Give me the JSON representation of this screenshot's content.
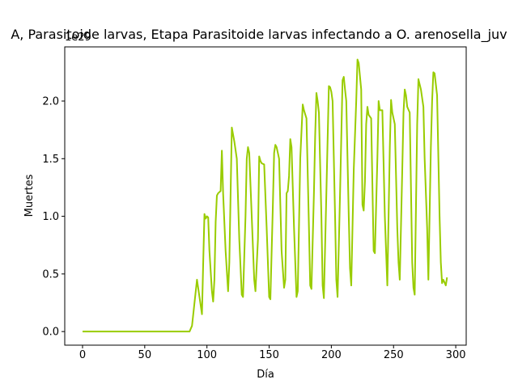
{
  "chart_data": {
    "type": "line",
    "title": "A, Parasitoide larvas, Etapa Parasitoide larvas infectando a O. arenosella_juv",
    "xlabel": "Día",
    "ylabel": "Muertes",
    "offset_text": "1e29",
    "x": [
      0,
      86,
      88,
      90,
      92,
      94,
      96,
      97,
      98,
      99,
      100,
      101,
      102,
      104,
      105,
      106,
      107,
      108,
      109,
      111,
      112,
      113,
      115,
      117,
      118,
      120,
      122,
      124,
      126,
      128,
      129,
      131,
      132,
      133,
      134,
      136,
      138,
      139,
      141,
      142,
      143,
      144,
      146,
      148,
      150,
      151,
      153,
      154,
      155,
      156,
      158,
      160,
      162,
      163,
      164,
      165,
      166,
      167,
      168,
      170,
      172,
      173,
      175,
      177,
      178,
      180,
      182,
      183,
      184,
      186,
      187,
      188,
      189,
      190,
      192,
      193,
      194,
      196,
      198,
      199,
      200,
      201,
      203,
      204,
      205,
      207,
      209,
      210,
      211,
      212,
      214,
      215,
      216,
      218,
      220,
      221,
      222,
      224,
      225,
      226,
      227,
      228,
      229,
      230,
      232,
      234,
      235,
      237,
      238,
      239,
      241,
      243,
      245,
      247,
      248,
      249,
      251,
      253,
      254,
      255,
      257,
      258,
      259,
      260,
      261,
      263,
      265,
      266,
      267,
      269,
      270,
      272,
      274,
      275,
      277,
      278,
      280,
      281,
      282,
      283,
      285,
      287,
      288,
      289,
      290,
      292,
      293
    ],
    "series": [
      {
        "name": "Muertes",
        "color": "#99cc00",
        "values": [
          0,
          0,
          0.05,
          0.25,
          0.45,
          0.3,
          0.15,
          0.6,
          1.02,
          0.98,
          1.0,
          0.99,
          0.7,
          0.35,
          0.26,
          0.45,
          0.95,
          1.18,
          1.2,
          1.22,
          1.57,
          1.2,
          0.7,
          0.35,
          0.6,
          1.77,
          1.65,
          1.5,
          0.8,
          0.32,
          0.3,
          1.0,
          1.5,
          1.6,
          1.55,
          1.0,
          0.45,
          0.35,
          0.8,
          1.52,
          1.48,
          1.46,
          1.45,
          0.9,
          0.3,
          0.28,
          1.1,
          1.55,
          1.62,
          1.6,
          1.5,
          0.7,
          0.38,
          0.45,
          1.2,
          1.22,
          1.35,
          1.67,
          1.6,
          0.9,
          0.3,
          0.35,
          1.5,
          1.97,
          1.92,
          1.85,
          0.9,
          0.4,
          0.37,
          1.2,
          1.7,
          2.07,
          2.0,
          1.9,
          1.0,
          0.4,
          0.29,
          1.2,
          2.13,
          2.12,
          2.08,
          2.0,
          1.0,
          0.45,
          0.3,
          1.2,
          2.18,
          2.21,
          2.1,
          2.0,
          1.0,
          0.55,
          0.4,
          1.4,
          2.0,
          2.36,
          2.33,
          2.1,
          1.1,
          1.05,
          1.3,
          1.8,
          1.95,
          1.88,
          1.85,
          0.7,
          0.68,
          1.5,
          2.0,
          1.92,
          1.92,
          1.0,
          0.4,
          1.6,
          2.01,
          1.9,
          1.8,
          0.9,
          0.6,
          0.45,
          1.4,
          1.9,
          2.1,
          2.05,
          1.95,
          1.9,
          0.6,
          0.38,
          0.32,
          1.8,
          2.19,
          2.1,
          1.95,
          1.5,
          0.9,
          0.45,
          1.6,
          2.0,
          2.25,
          2.24,
          2.05,
          1.0,
          0.6,
          0.42,
          0.45,
          0.4,
          0.47
        ]
      }
    ],
    "xlim": [
      -14.3,
      308.4
    ],
    "ylim": [
      -0.118,
      2.47
    ],
    "xticks": [
      0,
      50,
      100,
      150,
      200,
      250,
      300
    ],
    "yticks": [
      {
        "value": 0,
        "label": "0.0"
      },
      {
        "value": 0.5,
        "label": "0.5"
      },
      {
        "value": 1,
        "label": "1.0"
      },
      {
        "value": 1.5,
        "label": "1.5"
      },
      {
        "value": 2,
        "label": "2.0"
      }
    ]
  }
}
